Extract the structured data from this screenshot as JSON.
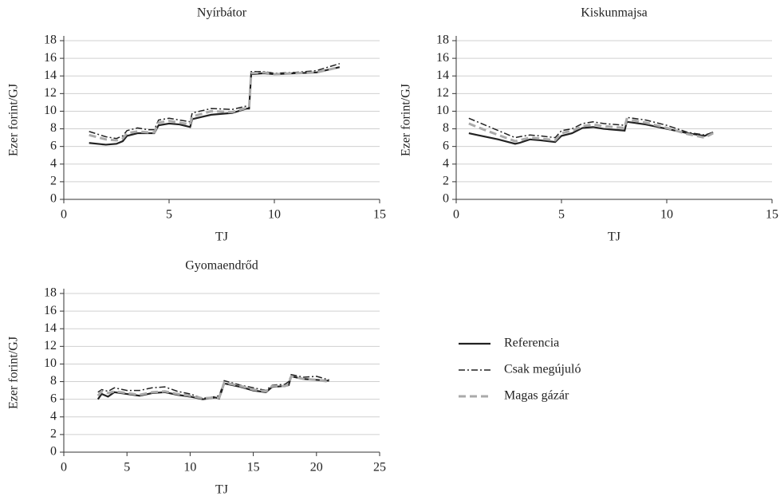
{
  "chart_data": [
    {
      "type": "line",
      "title": "Nyírbátor",
      "xlabel": "TJ",
      "ylabel": "Ezer forint/GJ",
      "x": [
        1.2,
        2,
        2.5,
        2.8,
        3,
        3.5,
        4,
        4.3,
        4.5,
        5,
        5.5,
        6,
        6.1,
        7,
        8,
        8.7,
        8.8,
        8.9,
        9.5,
        10,
        11,
        12,
        13.1
      ],
      "series": [
        {
          "name": "Referencia",
          "color": "#222222",
          "dash": "solid",
          "values": [
            6.4,
            6.2,
            6.3,
            6.6,
            7.2,
            7.5,
            7.5,
            7.5,
            8.4,
            8.6,
            8.5,
            8.2,
            9.1,
            9.6,
            9.8,
            10.3,
            10.3,
            14.2,
            14.3,
            14.2,
            14.3,
            14.4,
            15.0
          ]
        },
        {
          "name": "Csak megújuló",
          "color": "#222222",
          "dash": "dashdot",
          "values": [
            7.7,
            7.1,
            6.9,
            7.2,
            7.8,
            8.1,
            7.9,
            7.9,
            9.0,
            9.2,
            9.0,
            8.8,
            9.8,
            10.3,
            10.2,
            10.6,
            10.6,
            14.5,
            14.5,
            14.3,
            14.4,
            14.6,
            15.4
          ]
        },
        {
          "name": "Magas gázár",
          "color": "#aaaaaa",
          "dash": "dash",
          "values": [
            7.3,
            6.8,
            6.7,
            6.9,
            7.5,
            7.7,
            7.6,
            7.6,
            8.7,
            8.9,
            8.7,
            8.5,
            9.4,
            10.0,
            9.9,
            10.4,
            10.4,
            14.3,
            14.4,
            14.2,
            14.3,
            14.4,
            15.0
          ]
        }
      ],
      "xlim": [
        0,
        15
      ],
      "xticks": [
        0,
        5,
        10,
        15
      ],
      "ylim": [
        0,
        18
      ],
      "yticks": [
        0,
        2,
        4,
        6,
        8,
        10,
        12,
        14,
        16,
        18
      ],
      "grid": true
    },
    {
      "type": "line",
      "title": "Kiskunmajsa",
      "xlabel": "TJ",
      "ylabel": "Ezer forint/GJ",
      "x": [
        0.6,
        1,
        2,
        2.8,
        3,
        3.5,
        4,
        4.7,
        5,
        5.5,
        6,
        6.5,
        7,
        8,
        8.1,
        9,
        10,
        11,
        11.8,
        12.2
      ],
      "series": [
        {
          "color": "#222222",
          "dash": "solid",
          "values": [
            7.5,
            7.3,
            6.8,
            6.3,
            6.4,
            6.8,
            6.7,
            6.5,
            7.2,
            7.5,
            8.1,
            8.2,
            8.0,
            7.8,
            8.8,
            8.5,
            8.0,
            7.5,
            7.2,
            7.6
          ]
        },
        {
          "color": "#222222",
          "dash": "dashdot",
          "values": [
            9.2,
            8.8,
            7.8,
            7.0,
            7.1,
            7.3,
            7.2,
            7.0,
            7.8,
            8.0,
            8.6,
            8.8,
            8.6,
            8.4,
            9.3,
            9.0,
            8.4,
            7.6,
            7.3,
            7.6
          ]
        },
        {
          "color": "#aaaaaa",
          "dash": "dash",
          "values": [
            8.6,
            8.2,
            7.3,
            6.6,
            6.7,
            7.0,
            6.9,
            6.7,
            7.5,
            7.8,
            8.3,
            8.5,
            8.3,
            8.1,
            9.1,
            8.7,
            8.1,
            7.4,
            7.0,
            7.5
          ]
        }
      ],
      "xlim": [
        0,
        15
      ],
      "xticks": [
        0,
        5,
        10,
        15
      ],
      "ylim": [
        0,
        18
      ],
      "yticks": [
        0,
        2,
        4,
        6,
        8,
        10,
        12,
        14,
        16,
        18
      ],
      "grid": true
    },
    {
      "type": "line",
      "title": "Gyomaendrőd",
      "xlabel": "TJ",
      "ylabel": "Ezer forint/GJ",
      "x": [
        2.7,
        3,
        3.5,
        4,
        5,
        6,
        7,
        8,
        9,
        10,
        11,
        12,
        12.3,
        12.7,
        14,
        15,
        16,
        16.5,
        17.5,
        17.8,
        18,
        19,
        20,
        21
      ],
      "series": [
        {
          "color": "#222222",
          "dash": "solid",
          "values": [
            6.0,
            6.6,
            6.3,
            6.8,
            6.6,
            6.4,
            6.7,
            6.8,
            6.5,
            6.3,
            6.0,
            6.2,
            6.1,
            7.8,
            7.4,
            7.0,
            6.8,
            7.4,
            7.5,
            7.6,
            8.6,
            8.3,
            8.2,
            8.1
          ]
        },
        {
          "color": "#222222",
          "dash": "dashdot",
          "values": [
            6.8,
            7.1,
            6.9,
            7.3,
            7.0,
            7.0,
            7.3,
            7.4,
            6.9,
            6.6,
            6.1,
            6.3,
            6.4,
            8.1,
            7.6,
            7.3,
            7.0,
            7.6,
            7.7,
            8.0,
            8.8,
            8.5,
            8.6,
            8.2
          ]
        },
        {
          "color": "#aaaaaa",
          "dash": "dash",
          "values": [
            6.4,
            6.9,
            6.7,
            6.9,
            6.7,
            6.5,
            6.8,
            6.9,
            6.6,
            6.4,
            6.1,
            6.2,
            6.2,
            7.9,
            7.5,
            7.1,
            6.9,
            7.5,
            7.5,
            7.7,
            8.6,
            8.3,
            8.2,
            8.0
          ]
        }
      ],
      "xlim": [
        0,
        25
      ],
      "xticks": [
        0,
        5,
        10,
        15,
        20,
        25
      ],
      "ylim": [
        0,
        18
      ],
      "yticks": [
        0,
        2,
        4,
        6,
        8,
        10,
        12,
        14,
        16,
        18
      ],
      "grid": true
    }
  ]
}
